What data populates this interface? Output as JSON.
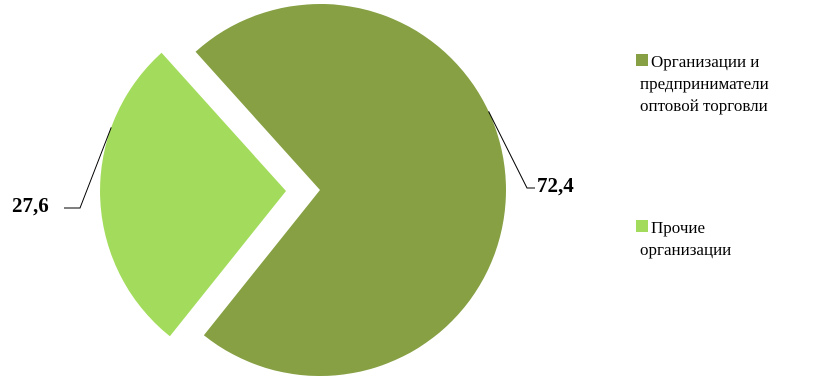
{
  "chart_data": {
    "type": "pie",
    "categories": [
      "Организации и предприниматели оптовой торговли",
      "Прочие организации"
    ],
    "values": [
      72.4,
      27.6
    ],
    "value_labels": [
      "72,4",
      "27,6"
    ],
    "colors": [
      "#86a043",
      "#a3dc5c"
    ],
    "legend": {
      "placement": "right",
      "entries": [
        {
          "lines": [
            "Организации и",
            "предприниматели",
            "оптовой торговли"
          ],
          "color": "#86a043"
        },
        {
          "lines": [
            "Прочие",
            "организации"
          ],
          "color": "#a3dc5c"
        }
      ]
    },
    "exploded_slice": 1,
    "title": ""
  }
}
